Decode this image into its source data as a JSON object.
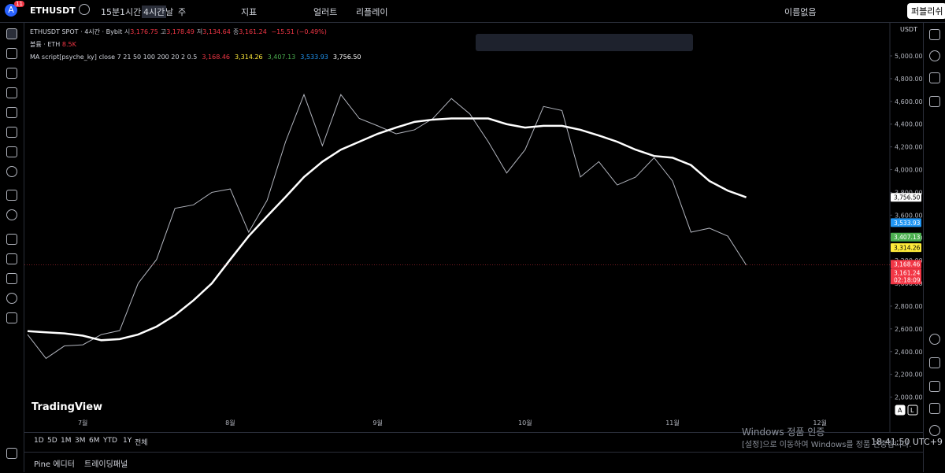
{
  "toolbar": {
    "avatar": "A",
    "badge": "11",
    "symbol": "ETHUSDT",
    "intervals": [
      "15분",
      "1시간",
      "4시간",
      "날",
      "주"
    ],
    "indicators": "지표",
    "alert": "얼러트",
    "replay": "리플레이",
    "layout_name": "이름없음",
    "publish": "퍼블리쉬"
  },
  "legend": {
    "symbol_line": "ETHUSDT SPOT · 4시간 · Bybit",
    "ohlc": [
      {
        "label": "시",
        "value": "3,176.75"
      },
      {
        "label": "고",
        "value": "3,178.49"
      },
      {
        "label": "저",
        "value": "3,134.64"
      },
      {
        "label": "종",
        "value": "3,161.24"
      }
    ],
    "change": "−15.51 (−0.49%)",
    "volume_name": "볼륨 · ETH",
    "volume_value": "8.5K",
    "ma_name": "MA script[psyche_ky] close 7 21 50 100 200 20 2 0.5",
    "ma_values": [
      {
        "value": "3,168.46",
        "color": "#f23645"
      },
      {
        "value": "3,314.26",
        "color": "#ffeb3b"
      },
      {
        "value": "3,407.13",
        "color": "#4caf50"
      },
      {
        "value": "3,533.93",
        "color": "#2196f3"
      },
      {
        "value": "3,756.50",
        "color": "#ffffff"
      }
    ]
  },
  "chart_data": {
    "type": "line",
    "currency": "USDT",
    "logo": "TradingView",
    "categories": [
      null,
      null,
      null,
      "7월",
      null,
      null,
      null,
      null,
      null,
      null,
      null,
      "8월",
      null,
      null,
      null,
      null,
      null,
      null,
      null,
      "9월",
      null,
      null,
      null,
      null,
      null,
      null,
      null,
      "10월",
      null,
      null,
      null,
      null,
      null,
      null,
      null,
      "11월",
      null,
      null,
      null,
      null,
      null,
      null,
      null,
      "12월",
      null,
      null,
      null
    ],
    "series": [
      {
        "name": "ETHUSDT",
        "color": "#b2b5be",
        "values": [
          2550,
          2340,
          2450,
          2460,
          2550,
          2585,
          3000,
          3210,
          3660,
          3690,
          3800,
          3830,
          3450,
          3730,
          4245,
          4660,
          4210,
          4660,
          4450,
          4385,
          4315,
          4350,
          4450,
          4625,
          4490,
          4245,
          3970,
          4175,
          4555,
          4520,
          3935,
          4070,
          3865,
          3935,
          4105,
          3900,
          3450,
          3485,
          3415,
          3161.24,
          null,
          null,
          null,
          null,
          null,
          null,
          null
        ]
      },
      {
        "name": "MA 200",
        "color": "#ffffff",
        "values": [
          2580,
          2570,
          2560,
          2540,
          2500,
          2510,
          2550,
          2620,
          2720,
          2850,
          3000,
          3210,
          3415,
          3590,
          3760,
          3935,
          4070,
          4175,
          4245,
          4315,
          4370,
          4420,
          4440,
          4450,
          4450,
          4450,
          4400,
          4370,
          4385,
          4385,
          4350,
          4300,
          4245,
          4175,
          4120,
          4105,
          4040,
          3900,
          3815,
          3756.5,
          null,
          null,
          null,
          null,
          null,
          null,
          null
        ]
      }
    ],
    "ylim": [
      1824,
      5180
    ],
    "yticks": [
      {
        "value": 2000,
        "label": "2,000.00"
      },
      {
        "value": 2200,
        "label": "2,200.00"
      },
      {
        "value": 2400,
        "label": "2,400.00"
      },
      {
        "value": 2600,
        "label": "2,600.00"
      },
      {
        "value": 2800,
        "label": "2,800.00"
      },
      {
        "value": 3000,
        "label": "3,000.00"
      },
      {
        "value": 3200,
        "label": "3,200.00"
      },
      {
        "value": 3400,
        "label": "3,400.00"
      },
      {
        "value": 3600,
        "label": "3,600.00"
      },
      {
        "value": 3800,
        "label": "3,800.00"
      },
      {
        "value": 4000,
        "label": "4,000.00"
      },
      {
        "value": 4200,
        "label": "4,200.00"
      },
      {
        "value": 4400,
        "label": "4,400.00"
      },
      {
        "value": 4600,
        "label": "4,600.00"
      },
      {
        "value": 4800,
        "label": "4,800.00"
      },
      {
        "value": 5000,
        "label": "5,000.00"
      }
    ],
    "price_tags": [
      {
        "value": 3756.5,
        "label": "3,756.50",
        "color": "#ffffff"
      },
      {
        "value": 3533.93,
        "label": "3,533.93",
        "color": "#2196f3"
      },
      {
        "value": 3407.13,
        "label": "3,407.13",
        "color": "#4caf50"
      },
      {
        "value": 3314.26,
        "label": "3,314.26",
        "color": "#ffeb3b"
      },
      {
        "value": 3168.46,
        "label": "3,168.46",
        "color": "#f23645"
      },
      {
        "value": 3161.24,
        "label": "3,161.24",
        "color": "#f23645"
      }
    ],
    "countdown": "02:18:09",
    "scale_modes": [
      "A",
      "L"
    ]
  },
  "bottom_bar": {
    "ranges": [
      "1D",
      "5D",
      "1M",
      "3M",
      "6M",
      "YTD",
      "1Y",
      "전체"
    ],
    "clock": "18:41:50 UTC+9"
  },
  "panel": {
    "tabs": [
      "Pine 에디터",
      "트레이딩패널"
    ]
  },
  "watermark": {
    "title": "Windows 정품 인증",
    "text": "[설정]으로 이동하여 Windows를 정품 인증합니다."
  }
}
